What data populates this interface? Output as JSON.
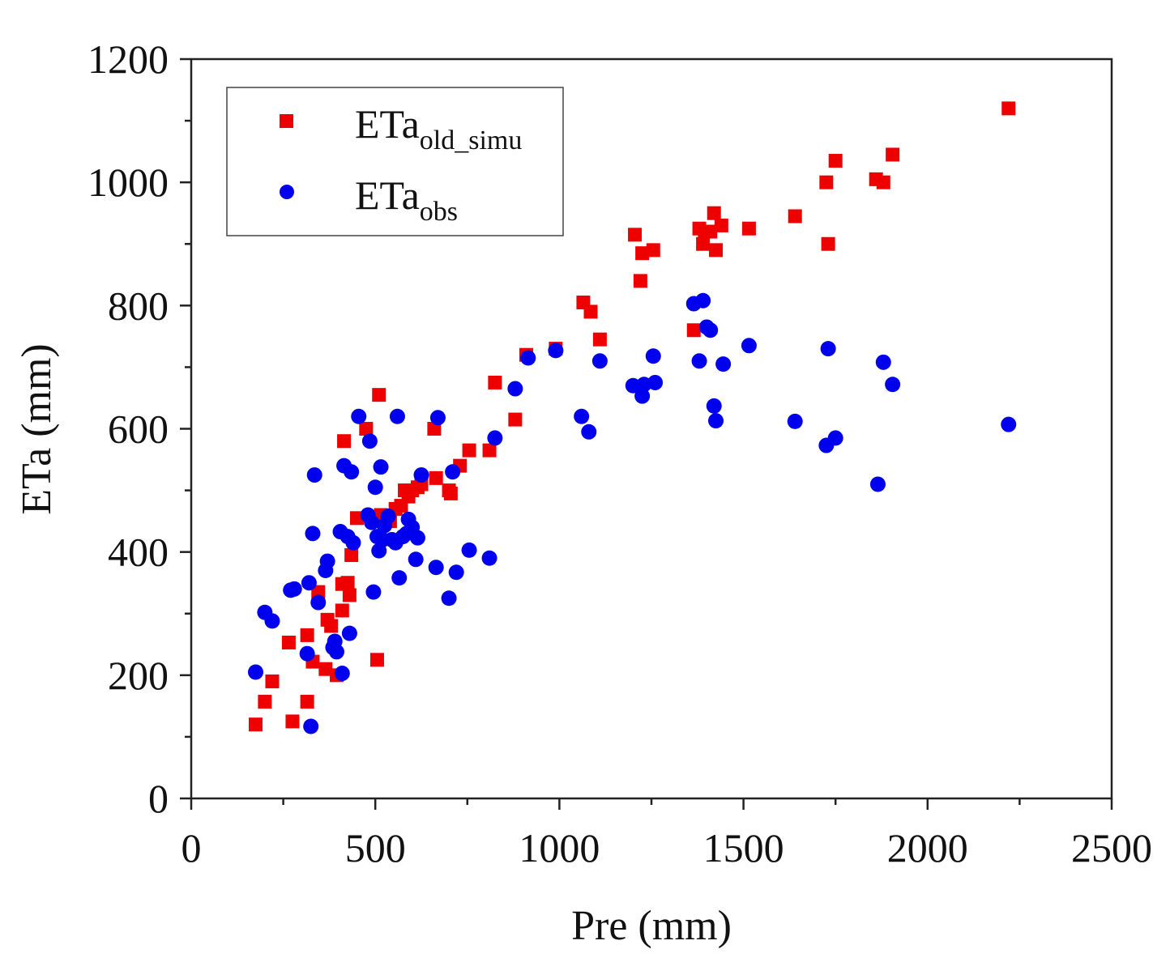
{
  "chart_data": {
    "type": "scatter",
    "title": "",
    "xlabel": "Pre (mm)",
    "ylabel": "ETa (mm)",
    "xlim": [
      0,
      2500
    ],
    "ylim": [
      0,
      1200
    ],
    "xticks": [
      0,
      500,
      1000,
      1500,
      2000,
      2500
    ],
    "yticks": [
      0,
      200,
      400,
      600,
      800,
      1000,
      1200
    ],
    "legend_position": "top-left",
    "series": [
      {
        "name": "ETa_old_simu",
        "legend_main": "ETa",
        "legend_sub": "old_simu",
        "marker": "square",
        "color": "#ee0000",
        "points": [
          [
            175,
            120
          ],
          [
            200,
            157
          ],
          [
            220,
            190
          ],
          [
            265,
            253
          ],
          [
            275,
            125
          ],
          [
            315,
            265
          ],
          [
            315,
            157
          ],
          [
            330,
            222
          ],
          [
            345,
            335
          ],
          [
            365,
            210
          ],
          [
            370,
            290
          ],
          [
            380,
            280
          ],
          [
            395,
            200
          ],
          [
            410,
            348
          ],
          [
            410,
            305
          ],
          [
            415,
            580
          ],
          [
            425,
            350
          ],
          [
            430,
            330
          ],
          [
            435,
            395
          ],
          [
            450,
            455
          ],
          [
            475,
            600
          ],
          [
            505,
            225
          ],
          [
            510,
            655
          ],
          [
            515,
            460
          ],
          [
            540,
            450
          ],
          [
            555,
            470
          ],
          [
            570,
            475
          ],
          [
            580,
            500
          ],
          [
            590,
            490
          ],
          [
            600,
            500
          ],
          [
            615,
            505
          ],
          [
            625,
            510
          ],
          [
            660,
            600
          ],
          [
            665,
            520
          ],
          [
            700,
            500
          ],
          [
            705,
            495
          ],
          [
            730,
            540
          ],
          [
            755,
            565
          ],
          [
            810,
            565
          ],
          [
            825,
            675
          ],
          [
            880,
            615
          ],
          [
            910,
            720
          ],
          [
            990,
            730
          ],
          [
            1065,
            805
          ],
          [
            1085,
            790
          ],
          [
            1110,
            745
          ],
          [
            1205,
            915
          ],
          [
            1220,
            840
          ],
          [
            1225,
            885
          ],
          [
            1255,
            890
          ],
          [
            1365,
            760
          ],
          [
            1380,
            925
          ],
          [
            1390,
            900
          ],
          [
            1395,
            920
          ],
          [
            1410,
            920
          ],
          [
            1420,
            950
          ],
          [
            1425,
            890
          ],
          [
            1440,
            930
          ],
          [
            1515,
            925
          ],
          [
            1640,
            945
          ],
          [
            1725,
            1000
          ],
          [
            1730,
            900
          ],
          [
            1750,
            1035
          ],
          [
            1860,
            1005
          ],
          [
            1880,
            1000
          ],
          [
            1905,
            1045
          ],
          [
            2220,
            1120
          ]
        ]
      },
      {
        "name": "ETa_obs",
        "legend_main": "ETa",
        "legend_sub": "obs",
        "marker": "circle",
        "color": "#0000ee",
        "points": [
          [
            175,
            205
          ],
          [
            200,
            302
          ],
          [
            220,
            288
          ],
          [
            270,
            338
          ],
          [
            280,
            340
          ],
          [
            315,
            235
          ],
          [
            320,
            350
          ],
          [
            325,
            117
          ],
          [
            330,
            430
          ],
          [
            335,
            525
          ],
          [
            345,
            318
          ],
          [
            365,
            370
          ],
          [
            370,
            385
          ],
          [
            385,
            245
          ],
          [
            390,
            255
          ],
          [
            395,
            238
          ],
          [
            405,
            433
          ],
          [
            410,
            203
          ],
          [
            415,
            540
          ],
          [
            425,
            425
          ],
          [
            430,
            268
          ],
          [
            435,
            530
          ],
          [
            440,
            415
          ],
          [
            455,
            620
          ],
          [
            480,
            460
          ],
          [
            485,
            580
          ],
          [
            490,
            448
          ],
          [
            495,
            335
          ],
          [
            500,
            505
          ],
          [
            505,
            425
          ],
          [
            510,
            402
          ],
          [
            515,
            538
          ],
          [
            520,
            420
          ],
          [
            525,
            443
          ],
          [
            535,
            458
          ],
          [
            545,
            420
          ],
          [
            555,
            415
          ],
          [
            560,
            620
          ],
          [
            565,
            358
          ],
          [
            575,
            425
          ],
          [
            585,
            430
          ],
          [
            590,
            453
          ],
          [
            600,
            440
          ],
          [
            610,
            388
          ],
          [
            615,
            423
          ],
          [
            625,
            525
          ],
          [
            665,
            375
          ],
          [
            670,
            618
          ],
          [
            700,
            325
          ],
          [
            710,
            530
          ],
          [
            720,
            367
          ],
          [
            755,
            403
          ],
          [
            810,
            390
          ],
          [
            825,
            585
          ],
          [
            880,
            665
          ],
          [
            915,
            715
          ],
          [
            990,
            727
          ],
          [
            1060,
            620
          ],
          [
            1080,
            595
          ],
          [
            1110,
            710
          ],
          [
            1200,
            670
          ],
          [
            1225,
            653
          ],
          [
            1230,
            672
          ],
          [
            1255,
            718
          ],
          [
            1260,
            675
          ],
          [
            1365,
            803
          ],
          [
            1380,
            710
          ],
          [
            1390,
            808
          ],
          [
            1400,
            765
          ],
          [
            1410,
            760
          ],
          [
            1420,
            637
          ],
          [
            1425,
            613
          ],
          [
            1445,
            705
          ],
          [
            1515,
            735
          ],
          [
            1640,
            612
          ],
          [
            1725,
            573
          ],
          [
            1730,
            730
          ],
          [
            1750,
            585
          ],
          [
            1865,
            510
          ],
          [
            1880,
            708
          ],
          [
            1905,
            672
          ],
          [
            2220,
            607
          ]
        ]
      }
    ]
  }
}
